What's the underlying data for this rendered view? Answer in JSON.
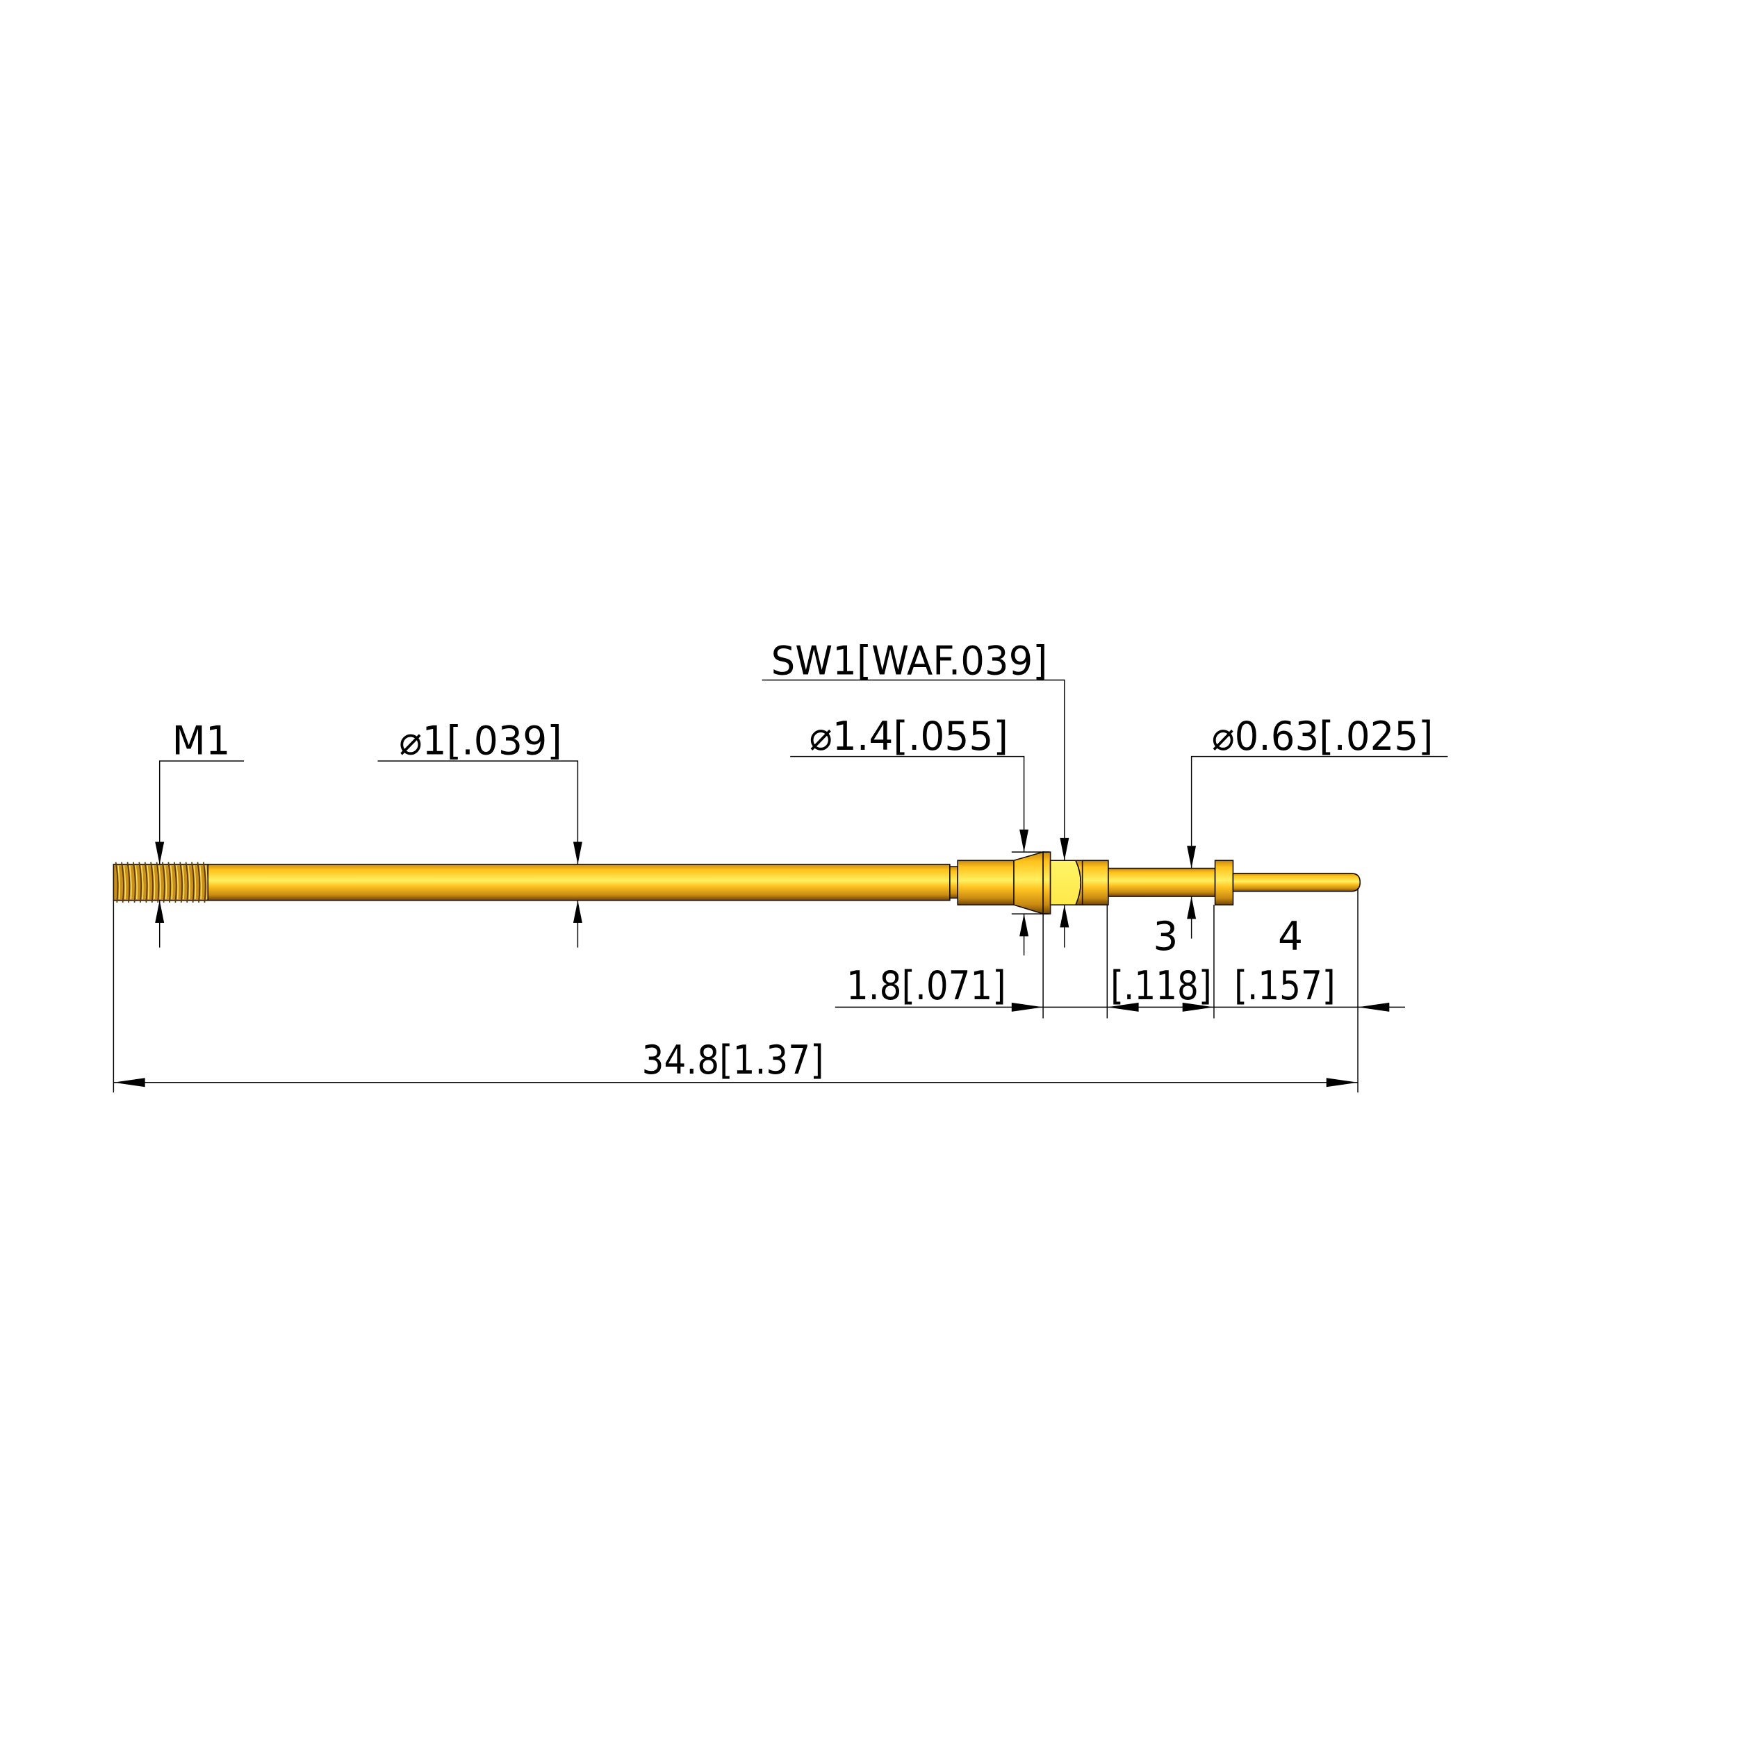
{
  "drawing": {
    "part": "spring contact probe receptacle with M1 thread",
    "colors": {
      "gold_light": "#fff060",
      "gold_mid": "#ffc422",
      "gold_dark": "#8a5a08",
      "hex_face": "#fff466",
      "line": "#000000",
      "background": "#ffffff"
    },
    "dimensions": {
      "thread": "M1",
      "shaft_diameter": "⌀1[.039]",
      "body_diameter": "⌀1.4[.055]",
      "hex_size": "SW1[WAF.039]",
      "plunger_diameter": "⌀0.63[.025]",
      "hex_offset": "1.8[.071]",
      "plunger_length_mm": "3",
      "plunger_length_in": "[.118]",
      "tip_length_mm": "4",
      "tip_length_in": "[.157]",
      "overall_length": "34.8[1.37]"
    }
  }
}
